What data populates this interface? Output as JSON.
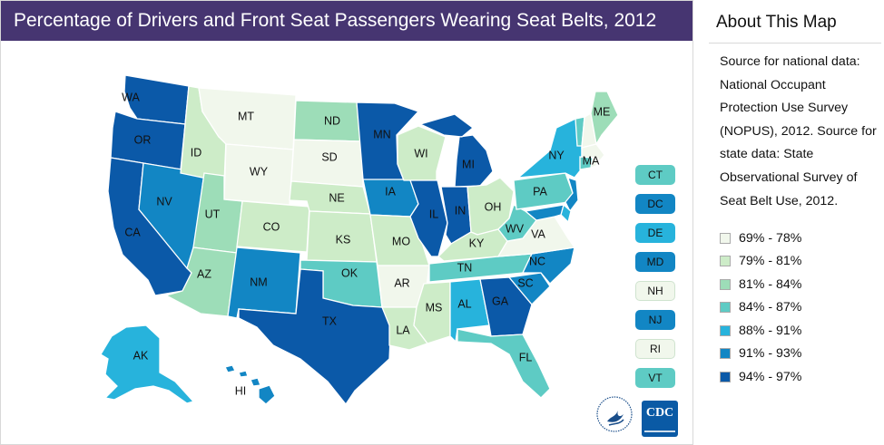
{
  "title": "Percentage of Drivers and Front Seat Passengers Wearing Seat Belts, 2012",
  "about": {
    "heading": "About This Map",
    "text": "Source for national data: National Occupant Protection Use Survey (NOPUS), 2012. Source for state data: State Observational Survey of Seat Belt Use, 2012."
  },
  "colors": [
    "#f1f7ec",
    "#cdecc8",
    "#9dddb8",
    "#5ecbc4",
    "#27b3dc",
    "#1286c4",
    "#0b59a8"
  ],
  "legend": [
    {
      "label": "69% - 78%",
      "color": "#f1f7ec"
    },
    {
      "label": "79% - 81%",
      "color": "#cdecc8"
    },
    {
      "label": "81% - 84%",
      "color": "#9dddb8"
    },
    {
      "label": "84% - 87%",
      "color": "#5ecbc4"
    },
    {
      "label": "88% - 91%",
      "color": "#27b3dc"
    },
    {
      "label": "91% - 93%",
      "color": "#1286c4"
    },
    {
      "label": "94% - 97%",
      "color": "#0b59a8"
    }
  ],
  "states": {
    "WA": 6,
    "OR": 6,
    "CA": 6,
    "NV": 5,
    "ID": 1,
    "MT": 0,
    "WY": 0,
    "UT": 2,
    "AZ": 2,
    "CO": 1,
    "NM": 5,
    "ND": 2,
    "SD": 0,
    "NE": 1,
    "KS": 1,
    "OK": 3,
    "TX": 6,
    "MN": 6,
    "IA": 5,
    "MO": 1,
    "AR": 0,
    "LA": 1,
    "WI": 1,
    "IL": 6,
    "MI": 6,
    "IN": 6,
    "OH": 1,
    "KY": 1,
    "TN": 3,
    "MS": 1,
    "AL": 4,
    "GA": 6,
    "FL": 3,
    "SC": 5,
    "NC": 5,
    "VA": 0,
    "WV": 3,
    "PA": 3,
    "NY": 4,
    "NJ": 5,
    "DE": 4,
    "MD": 5,
    "ME": 2,
    "VT": 3,
    "NH": 0,
    "MA": 0,
    "CT": 3,
    "RI": 0,
    "DC": 5,
    "AK": 4,
    "HI": 5
  },
  "small_states": [
    {
      "code": "CT",
      "value": 3
    },
    {
      "code": "DC",
      "value": 5
    },
    {
      "code": "DE",
      "value": 4
    },
    {
      "code": "MD",
      "value": 5
    },
    {
      "code": "NH",
      "value": 0
    },
    {
      "code": "NJ",
      "value": 5
    },
    {
      "code": "RI",
      "value": 0
    },
    {
      "code": "VT",
      "value": 3
    }
  ],
  "logo": {
    "cdc_text": "CDC"
  }
}
